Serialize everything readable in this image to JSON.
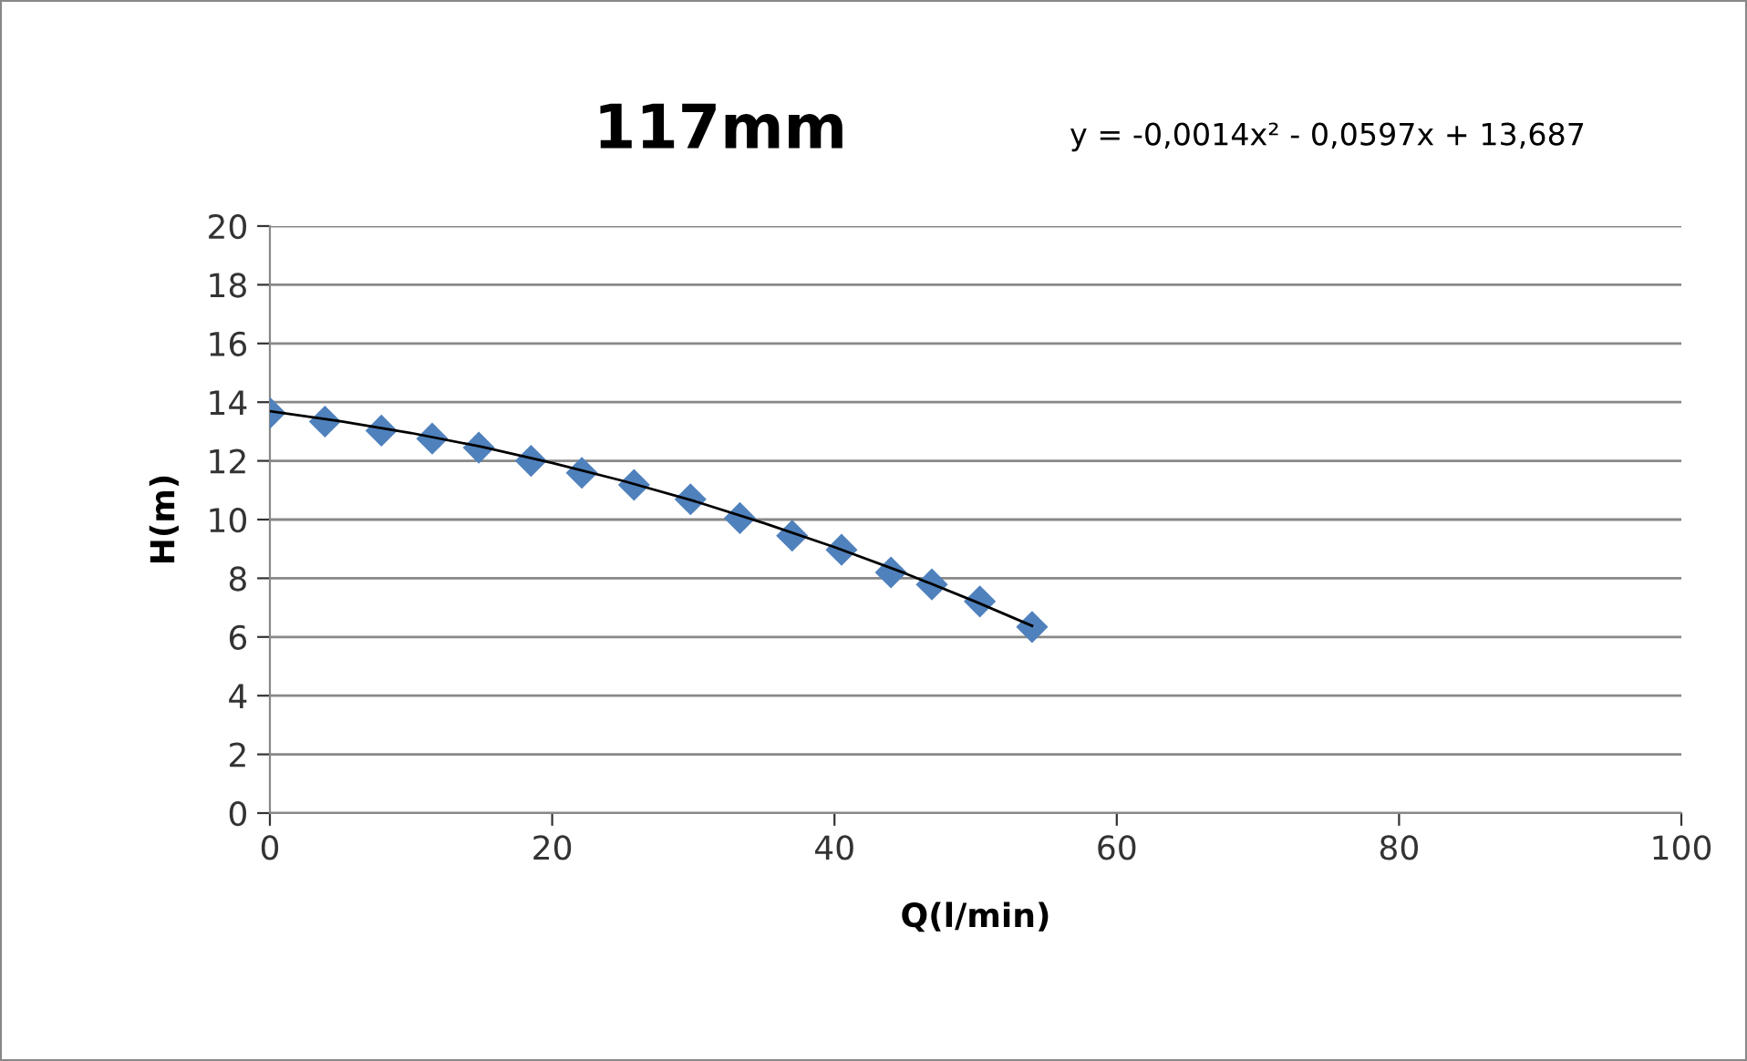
{
  "chart_data": {
    "type": "scatter",
    "title": "117mm",
    "xlabel": "Q(l/min)",
    "ylabel": "H(m)",
    "annotations": [
      "y = -0,0014x² - 0,0597x + 13,687"
    ],
    "series": [
      {
        "color": "#4f81bd",
        "marker": "diamond",
        "x": [
          0,
          3.9,
          7.9,
          11.5,
          14.8,
          18.5,
          22.1,
          25.8,
          29.8,
          33.3,
          37.0,
          40.5,
          44.0,
          46.9,
          50.3,
          54.0
        ],
        "values": [
          13.63,
          13.34,
          13.03,
          12.76,
          12.45,
          12.0,
          11.59,
          11.18,
          10.69,
          10.05,
          9.45,
          8.97,
          8.2,
          7.79,
          7.21,
          6.34
        ]
      },
      {
        "type": "line",
        "color": "#000000",
        "marker": "none",
        "line_style": "solid",
        "x": [
          0,
          5,
          10,
          15,
          20,
          25,
          30,
          35,
          40,
          45,
          50,
          54
        ],
        "values": [
          13.69,
          13.35,
          12.95,
          12.48,
          11.93,
          11.32,
          10.64,
          9.88,
          9.06,
          8.17,
          7.2,
          6.38
        ]
      }
    ],
    "xlim": [
      0,
      100
    ],
    "xticks": [
      0,
      20,
      40,
      60,
      80,
      100
    ],
    "ylim": [
      0,
      20
    ],
    "yticks": [
      0,
      2,
      4,
      6,
      8,
      10,
      12,
      14,
      16,
      18,
      20
    ],
    "grid": "y",
    "legend": false
  }
}
